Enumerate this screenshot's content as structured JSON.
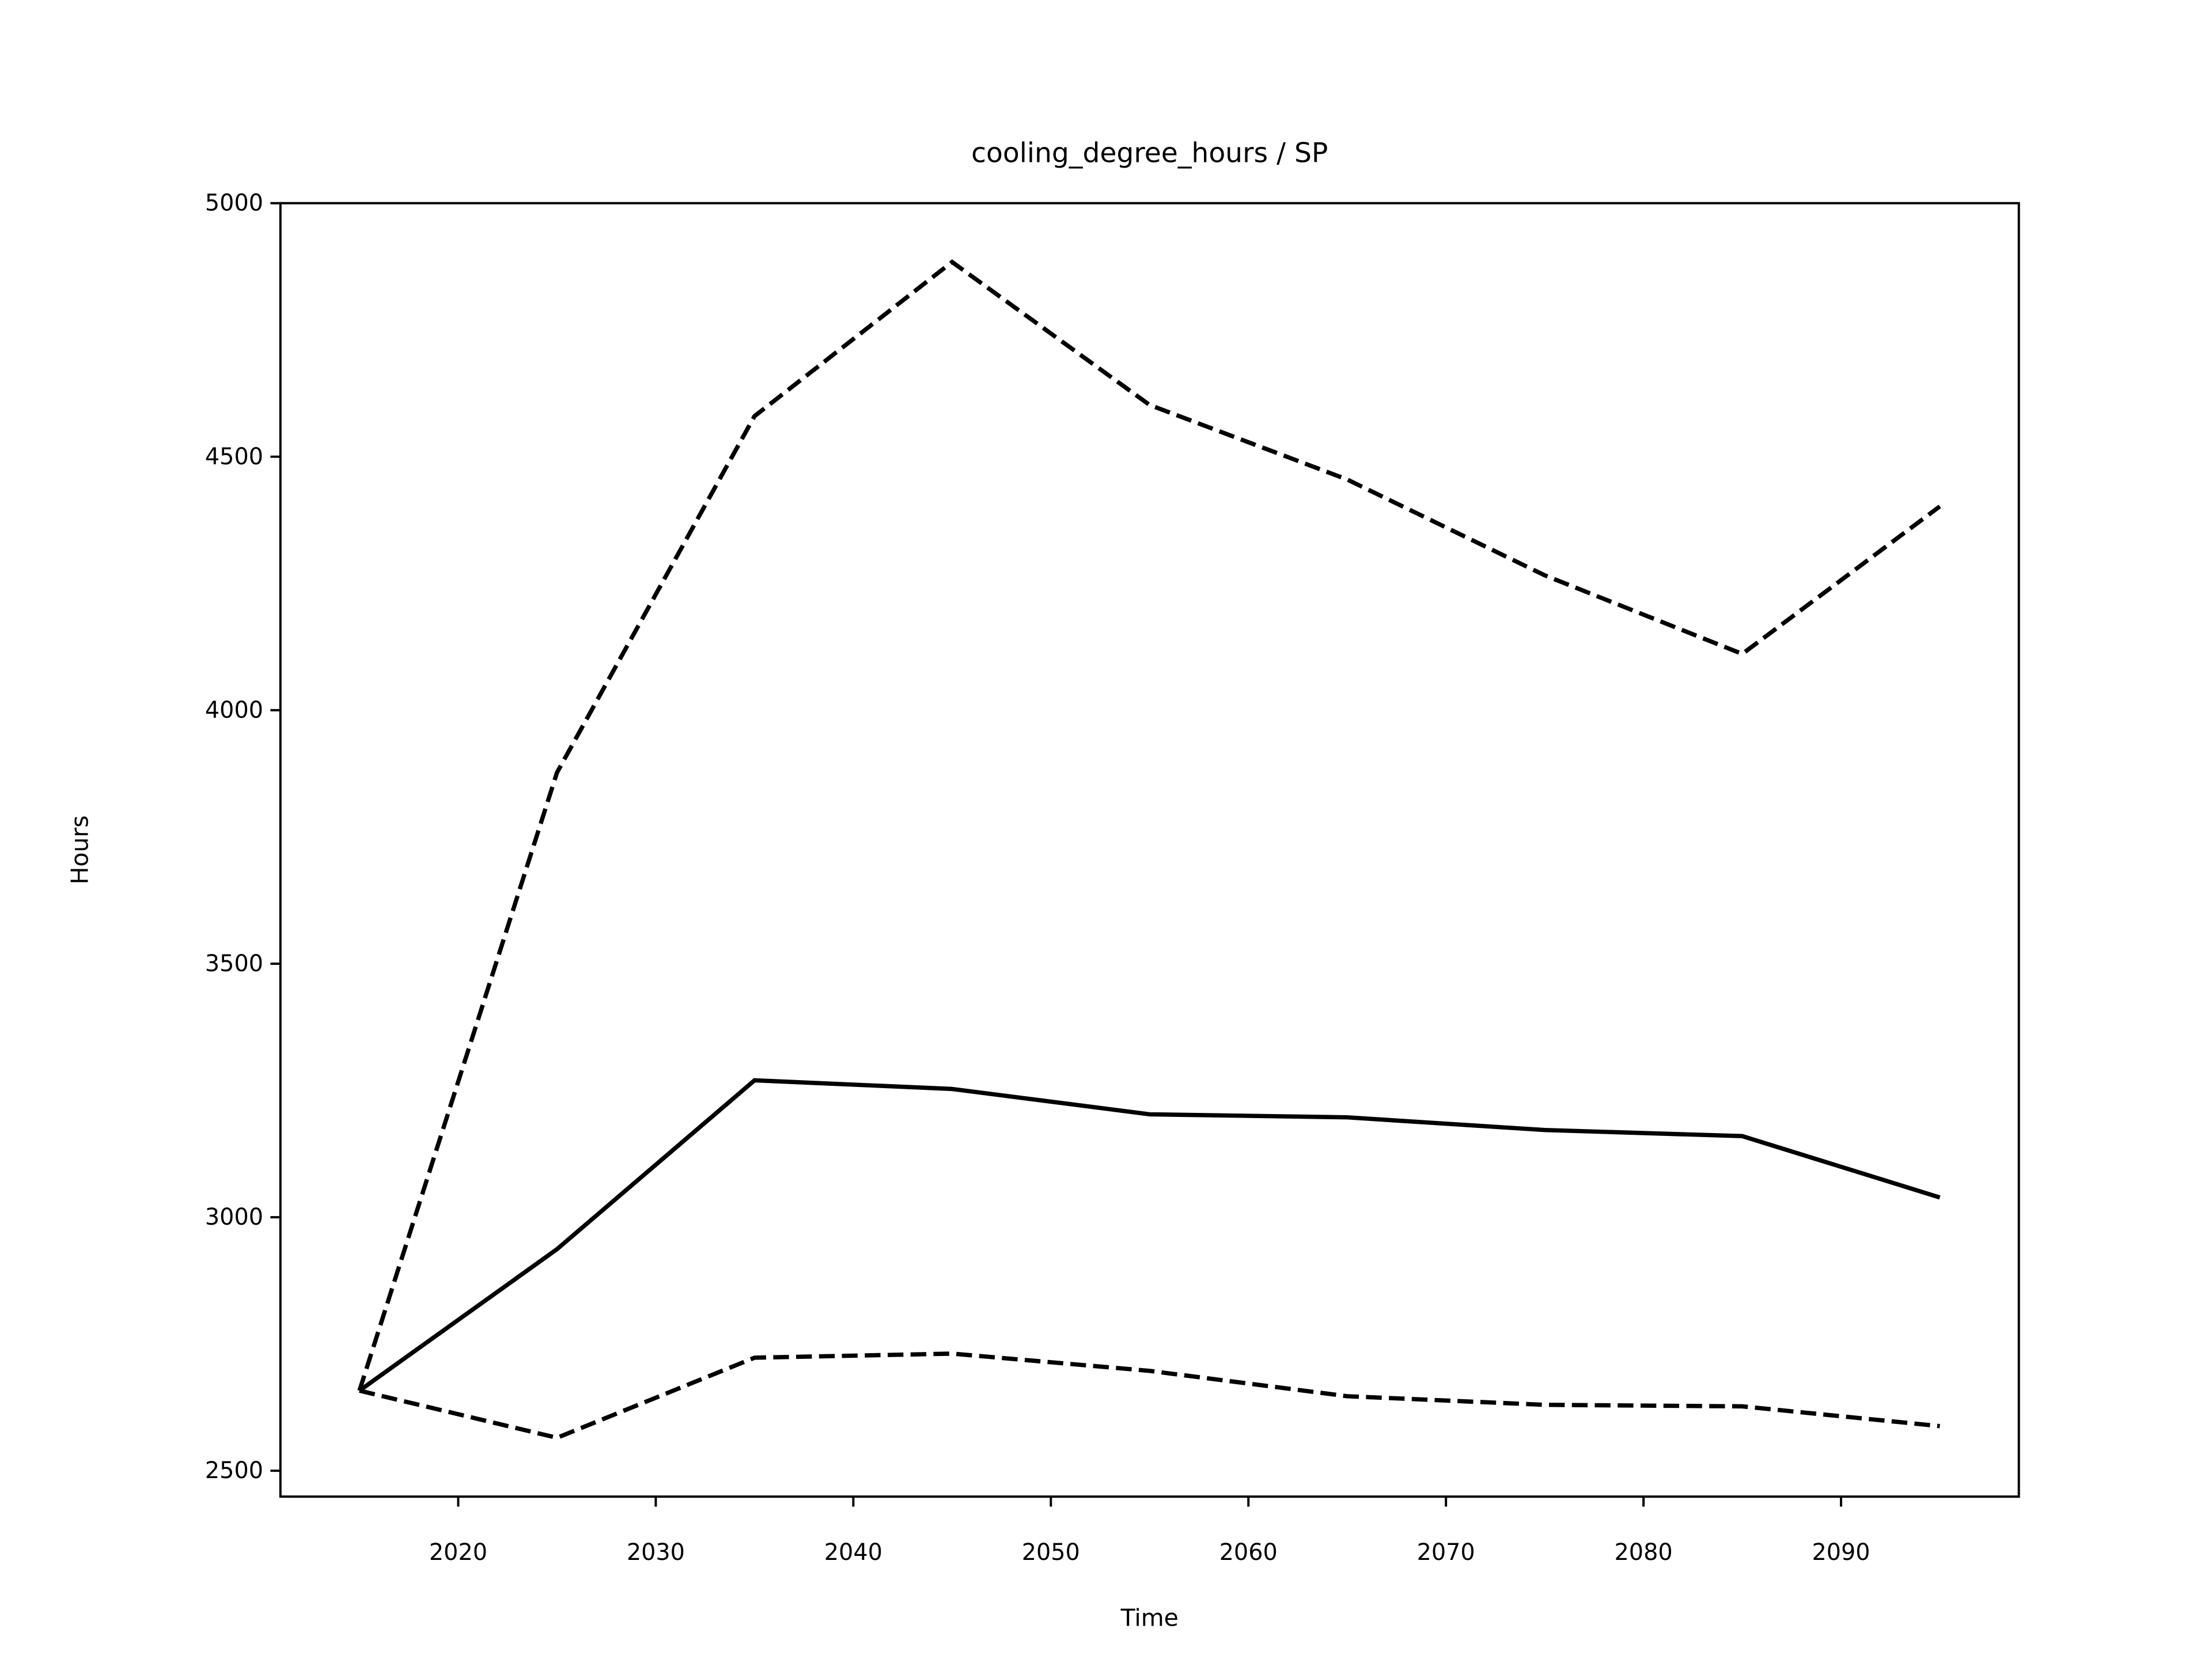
{
  "chart_data": {
    "type": "line",
    "title": "cooling_degree_hours / SP",
    "x_label": "Time",
    "y_label": "Hours",
    "x": [
      2015,
      2025,
      2035,
      2045,
      2055,
      2065,
      2075,
      2085,
      2095
    ],
    "series": [
      {
        "color": "#000000",
        "style": "solid",
        "values": [
          2658,
          2937,
          3270,
          3253,
          3203,
          3197,
          3172,
          3160,
          3039
        ]
      },
      {
        "color": "#000000",
        "style": "dashed",
        "values": [
          2658,
          3877,
          4580,
          4884,
          4602,
          4455,
          4266,
          4111,
          4402
        ]
      },
      {
        "color": "#000000",
        "style": "dashed",
        "values": [
          2658,
          2565,
          2723,
          2731,
          2697,
          2647,
          2630,
          2627,
          2588
        ]
      }
    ],
    "xlim": [
      2011,
      2099
    ],
    "ylim": [
      2449,
      5000
    ],
    "xticks": [
      2020,
      2030,
      2040,
      2050,
      2060,
      2070,
      2080,
      2090
    ],
    "yticks": [
      2500,
      3000,
      3500,
      4000,
      4500,
      5000
    ],
    "grid": false
  }
}
